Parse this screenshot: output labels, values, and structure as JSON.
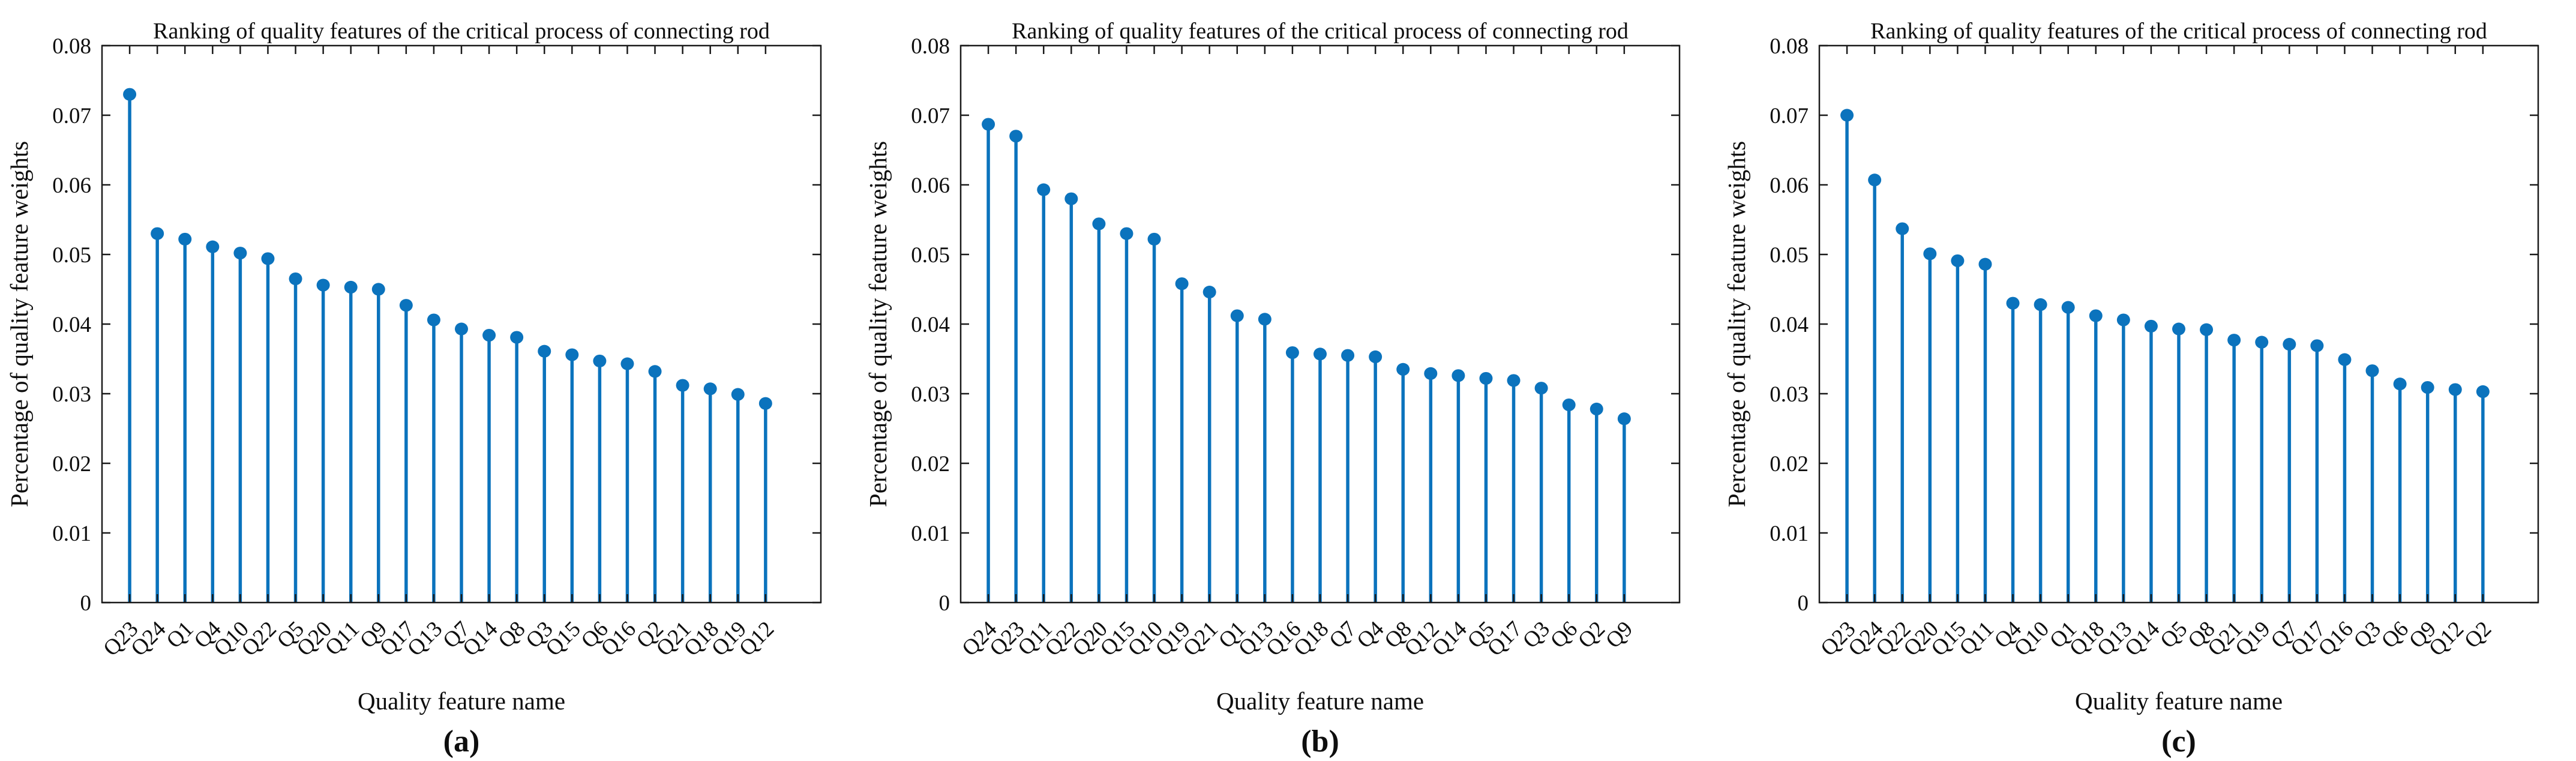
{
  "figure": {
    "background": "#ffffff",
    "stem_color": "#0b73bd",
    "axis_color": "#1a1a1a",
    "text_color": "#0e0e0e"
  },
  "chart_data": [
    {
      "type": "stem",
      "panel_label": "(a)",
      "title": "Ranking of quality features of the critical process of connecting rod",
      "xlabel": "Quality feature name",
      "ylabel": "Percentage of quality feature weights",
      "ylim": [
        0,
        0.08
      ],
      "ytick_labels": [
        "0",
        "0.01",
        "0.02",
        "0.03",
        "0.04",
        "0.05",
        "0.06",
        "0.07",
        "0.08"
      ],
      "grid": false,
      "legend": null,
      "categories": [
        "Q23",
        "Q24",
        "Q1",
        "Q4",
        "Q10",
        "Q22",
        "Q5",
        "Q20",
        "Q11",
        "Q9",
        "Q17",
        "Q13",
        "Q7",
        "Q14",
        "Q8",
        "Q3",
        "Q15",
        "Q6",
        "Q16",
        "Q2",
        "Q21",
        "Q18",
        "Q19",
        "Q12"
      ],
      "values": [
        0.073,
        0.053,
        0.0522,
        0.0511,
        0.0502,
        0.0494,
        0.0465,
        0.0456,
        0.0453,
        0.045,
        0.0427,
        0.0406,
        0.0393,
        0.0384,
        0.0381,
        0.0361,
        0.0356,
        0.0347,
        0.0343,
        0.0332,
        0.0312,
        0.0307,
        0.0299,
        0.0286
      ]
    },
    {
      "type": "stem",
      "panel_label": "(b)",
      "title": "Ranking of quality features of the critical process of connecting rod",
      "xlabel": "Quality feature name",
      "ylabel": "Percentage of quality feature weights",
      "ylim": [
        0,
        0.08
      ],
      "ytick_labels": [
        "0",
        "0.01",
        "0.02",
        "0.03",
        "0.04",
        "0.05",
        "0.06",
        "0.07",
        "0.08"
      ],
      "grid": false,
      "legend": null,
      "categories": [
        "Q24",
        "Q23",
        "Q11",
        "Q22",
        "Q20",
        "Q15",
        "Q10",
        "Q19",
        "Q21",
        "Q1",
        "Q13",
        "Q16",
        "Q18",
        "Q7",
        "Q4",
        "Q8",
        "Q12",
        "Q14",
        "Q5",
        "Q17",
        "Q3",
        "Q6",
        "Q2",
        "Q9"
      ],
      "values": [
        0.0687,
        0.067,
        0.0593,
        0.058,
        0.0544,
        0.053,
        0.0522,
        0.0458,
        0.0446,
        0.0412,
        0.0407,
        0.0359,
        0.0357,
        0.0355,
        0.0353,
        0.0335,
        0.0329,
        0.0326,
        0.0322,
        0.0319,
        0.0308,
        0.0284,
        0.0278,
        0.0264
      ]
    },
    {
      "type": "stem",
      "panel_label": "(c)",
      "title": "Ranking of quality features of the critical process of connecting rod",
      "xlabel": "Quality feature name",
      "ylabel": "Percentage of quality feature weights",
      "ylim": [
        0,
        0.08
      ],
      "ytick_labels": [
        "0",
        "0.01",
        "0.02",
        "0.03",
        "0.04",
        "0.05",
        "0.06",
        "0.07",
        "0.08"
      ],
      "grid": false,
      "legend": null,
      "categories": [
        "Q23",
        "Q24",
        "Q22",
        "Q20",
        "Q15",
        "Q11",
        "Q4",
        "Q10",
        "Q1",
        "Q18",
        "Q13",
        "Q14",
        "Q5",
        "Q8",
        "Q21",
        "Q19",
        "Q7",
        "Q17",
        "Q16",
        "Q3",
        "Q6",
        "Q9",
        "Q12",
        "Q2"
      ],
      "values": [
        0.07,
        0.0607,
        0.0537,
        0.0501,
        0.0491,
        0.0486,
        0.043,
        0.0428,
        0.0424,
        0.0412,
        0.0406,
        0.0397,
        0.0393,
        0.0392,
        0.0377,
        0.0374,
        0.0371,
        0.0369,
        0.0349,
        0.0333,
        0.0314,
        0.0309,
        0.0306,
        0.0303
      ]
    }
  ]
}
